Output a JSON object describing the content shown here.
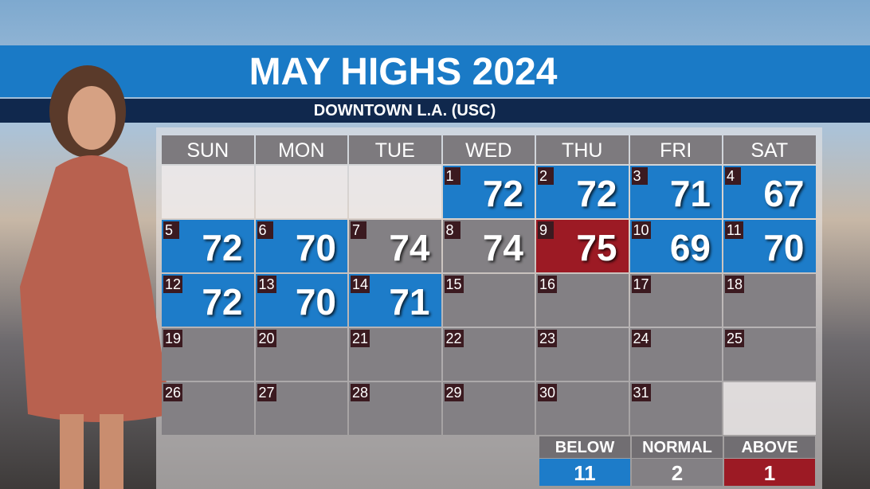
{
  "header": {
    "title": "MAY HIGHS 2024",
    "subtitle": "DOWNTOWN L.A. (USC)"
  },
  "calendar": {
    "weekdays": [
      "SUN",
      "MON",
      "TUE",
      "WED",
      "THU",
      "FRI",
      "SAT"
    ],
    "weeks": [
      [
        null,
        null,
        null,
        {
          "day": 1,
          "temp": 72,
          "color": "#1d7cc9"
        },
        {
          "day": 2,
          "temp": 72,
          "color": "#1d7cc9"
        },
        {
          "day": 3,
          "temp": 71,
          "color": "#1d7cc9"
        },
        {
          "day": 4,
          "temp": 67,
          "color": "#1d7cc9"
        }
      ],
      [
        {
          "day": 5,
          "temp": 72,
          "color": "#1d7cc9"
        },
        {
          "day": 6,
          "temp": 70,
          "color": "#1d7cc9"
        },
        {
          "day": 7,
          "temp": 74,
          "color": "#838084"
        },
        {
          "day": 8,
          "temp": 74,
          "color": "#838084"
        },
        {
          "day": 9,
          "temp": 75,
          "color": "#9c1a24"
        },
        {
          "day": 10,
          "temp": 69,
          "color": "#1d7cc9"
        },
        {
          "day": 11,
          "temp": 70,
          "color": "#1d7cc9"
        }
      ],
      [
        {
          "day": 12,
          "temp": 72,
          "color": "#1d7cc9"
        },
        {
          "day": 13,
          "temp": 70,
          "color": "#1d7cc9"
        },
        {
          "day": 14,
          "temp": 71,
          "color": "#1d7cc9"
        },
        {
          "day": 15
        },
        {
          "day": 16
        },
        {
          "day": 17
        },
        {
          "day": 18
        }
      ],
      [
        {
          "day": 19
        },
        {
          "day": 20
        },
        {
          "day": 21
        },
        {
          "day": 22
        },
        {
          "day": 23
        },
        {
          "day": 24
        },
        {
          "day": 25
        }
      ],
      [
        {
          "day": 26
        },
        {
          "day": 27
        },
        {
          "day": 28
        },
        {
          "day": 29
        },
        {
          "day": 30
        },
        {
          "day": 31
        },
        null
      ]
    ]
  },
  "legend": [
    {
      "label": "BELOW",
      "count": 11,
      "color": "#1d7cc9"
    },
    {
      "label": "NORMAL",
      "count": 2,
      "color": "#838084"
    },
    {
      "label": "ABOVE",
      "count": 1,
      "color": "#9c1a24"
    }
  ]
}
